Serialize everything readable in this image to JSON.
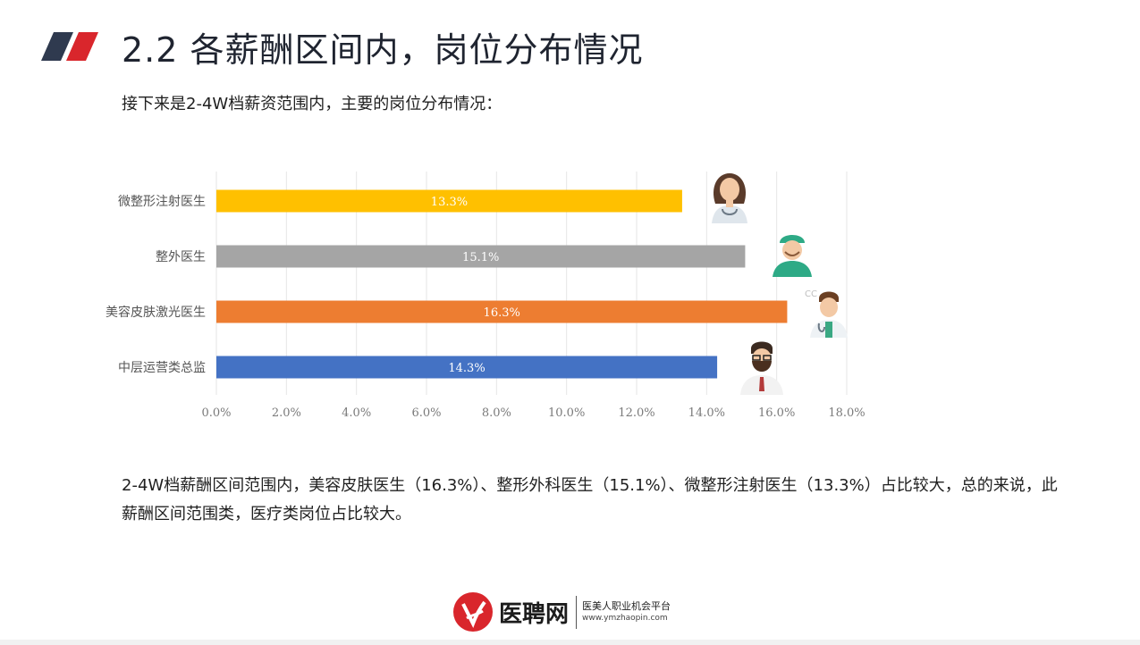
{
  "header": {
    "title": "2.2 各薪酬区间内，岗位分布情况"
  },
  "intro_text": "接下来是2-4W档薪资范围内，主要的岗位分布情况：",
  "summary_text": "2-4W档薪酬区间范围内，美容皮肤医生（16.3%）、整形外科医生（15.1%）、微整形注射医生（13.3%）占比较大，总的来说，此薪酬区间范围类，医疗类岗位占比较大。",
  "chart_data": {
    "type": "bar",
    "orientation": "horizontal",
    "categories": [
      "微整形注射医生",
      "整外医生",
      "美容皮肤激光医生",
      "中层运营类总监"
    ],
    "values": [
      13.3,
      15.1,
      16.3,
      14.3
    ],
    "value_labels": [
      "13.3%",
      "15.1%",
      "16.3%",
      "14.3%"
    ],
    "bar_colors": [
      "#FFC000",
      "#A5A5A5",
      "#ED7D31",
      "#4472C4"
    ],
    "xlim": [
      0,
      18
    ],
    "xticks": [
      "0.0%",
      "2.0%",
      "4.0%",
      "6.0%",
      "8.0%",
      "10.0%",
      "12.0%",
      "14.0%",
      "16.0%",
      "18.0%"
    ],
    "grid": true,
    "title": "",
    "xlabel": "",
    "ylabel": ""
  },
  "icons": [
    "female-doctor-icon",
    "surgeon-icon",
    "male-doctor-icon",
    "bearded-executive-icon"
  ],
  "footer": {
    "brand": "医聘网",
    "slogan": "医美人职业机会平台",
    "url": "www.ymzhaopin.com"
  },
  "colors": {
    "accent_dark": "#2f3a4f",
    "accent_red": "#d9262c",
    "grid": "#e6e6e6"
  }
}
